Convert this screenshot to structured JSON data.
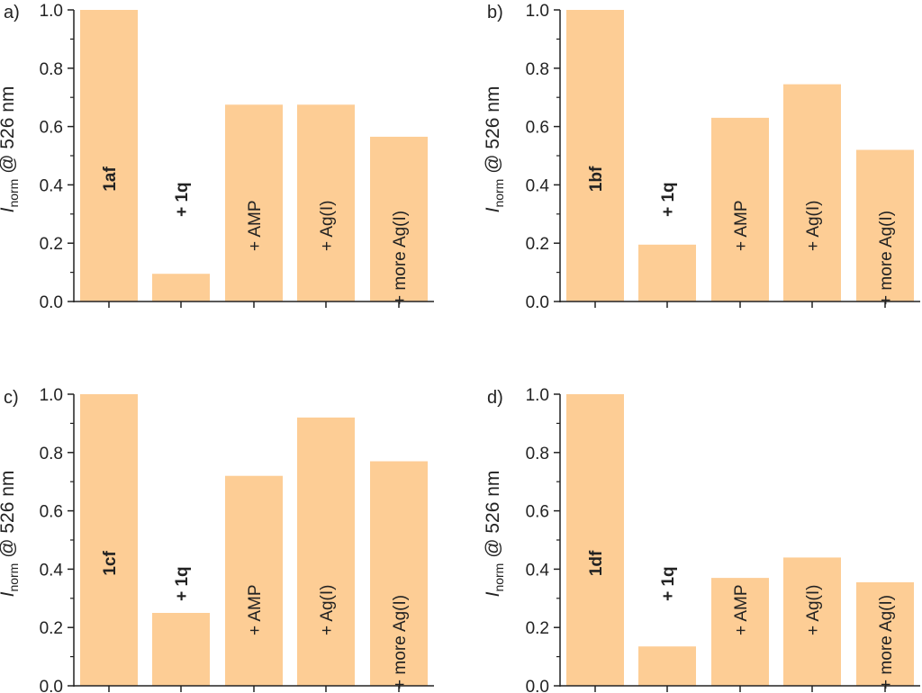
{
  "figure": {
    "bar_color": "#fdcd95",
    "axis_color": "#222222"
  },
  "chart_data": [
    {
      "type": "bar",
      "panel_label": "a)",
      "ylabel_main": "I",
      "ylabel_sub": "norm",
      "ylabel_rest": " @ 526 nm",
      "ylim": [
        0,
        1.0
      ],
      "yticks": [
        "0.0",
        "0.2",
        "0.4",
        "0.6",
        "0.8",
        "1.0"
      ],
      "categories": [
        "1af",
        "+ 1q",
        "+ AMP",
        "+ Ag(I)",
        "+ more Ag(I)"
      ],
      "values": [
        1.0,
        0.095,
        0.675,
        0.675,
        0.565
      ]
    },
    {
      "type": "bar",
      "panel_label": "b)",
      "ylabel_main": "I",
      "ylabel_sub": "norm",
      "ylabel_rest": " @ 526 nm",
      "ylim": [
        0,
        1.0
      ],
      "yticks": [
        "0.0",
        "0.2",
        "0.4",
        "0.6",
        "0.8",
        "1.0"
      ],
      "categories": [
        "1bf",
        "+ 1q",
        "+ AMP",
        "+ Ag(I)",
        "+ more Ag(I)"
      ],
      "values": [
        1.0,
        0.195,
        0.63,
        0.745,
        0.52
      ]
    },
    {
      "type": "bar",
      "panel_label": "c)",
      "ylabel_main": "I",
      "ylabel_sub": "norm",
      "ylabel_rest": " @ 526 nm",
      "ylim": [
        0,
        1.0
      ],
      "yticks": [
        "0.0",
        "0.2",
        "0.4",
        "0.6",
        "0.8",
        "1.0"
      ],
      "categories": [
        "1cf",
        "+ 1q",
        "+ AMP",
        "+ Ag(I)",
        "+ more Ag(I)"
      ],
      "values": [
        1.0,
        0.25,
        0.72,
        0.92,
        0.77
      ]
    },
    {
      "type": "bar",
      "panel_label": "d)",
      "ylabel_main": "I",
      "ylabel_sub": "norm",
      "ylabel_rest": " @ 526 nm",
      "ylim": [
        0,
        1.0
      ],
      "yticks": [
        "0.0",
        "0.2",
        "0.4",
        "0.6",
        "0.8",
        "1.0"
      ],
      "categories": [
        "1df",
        "+ 1q",
        "+ AMP",
        "+ Ag(I)",
        "+ more Ag(I)"
      ],
      "values": [
        1.0,
        0.135,
        0.37,
        0.44,
        0.355
      ]
    }
  ]
}
